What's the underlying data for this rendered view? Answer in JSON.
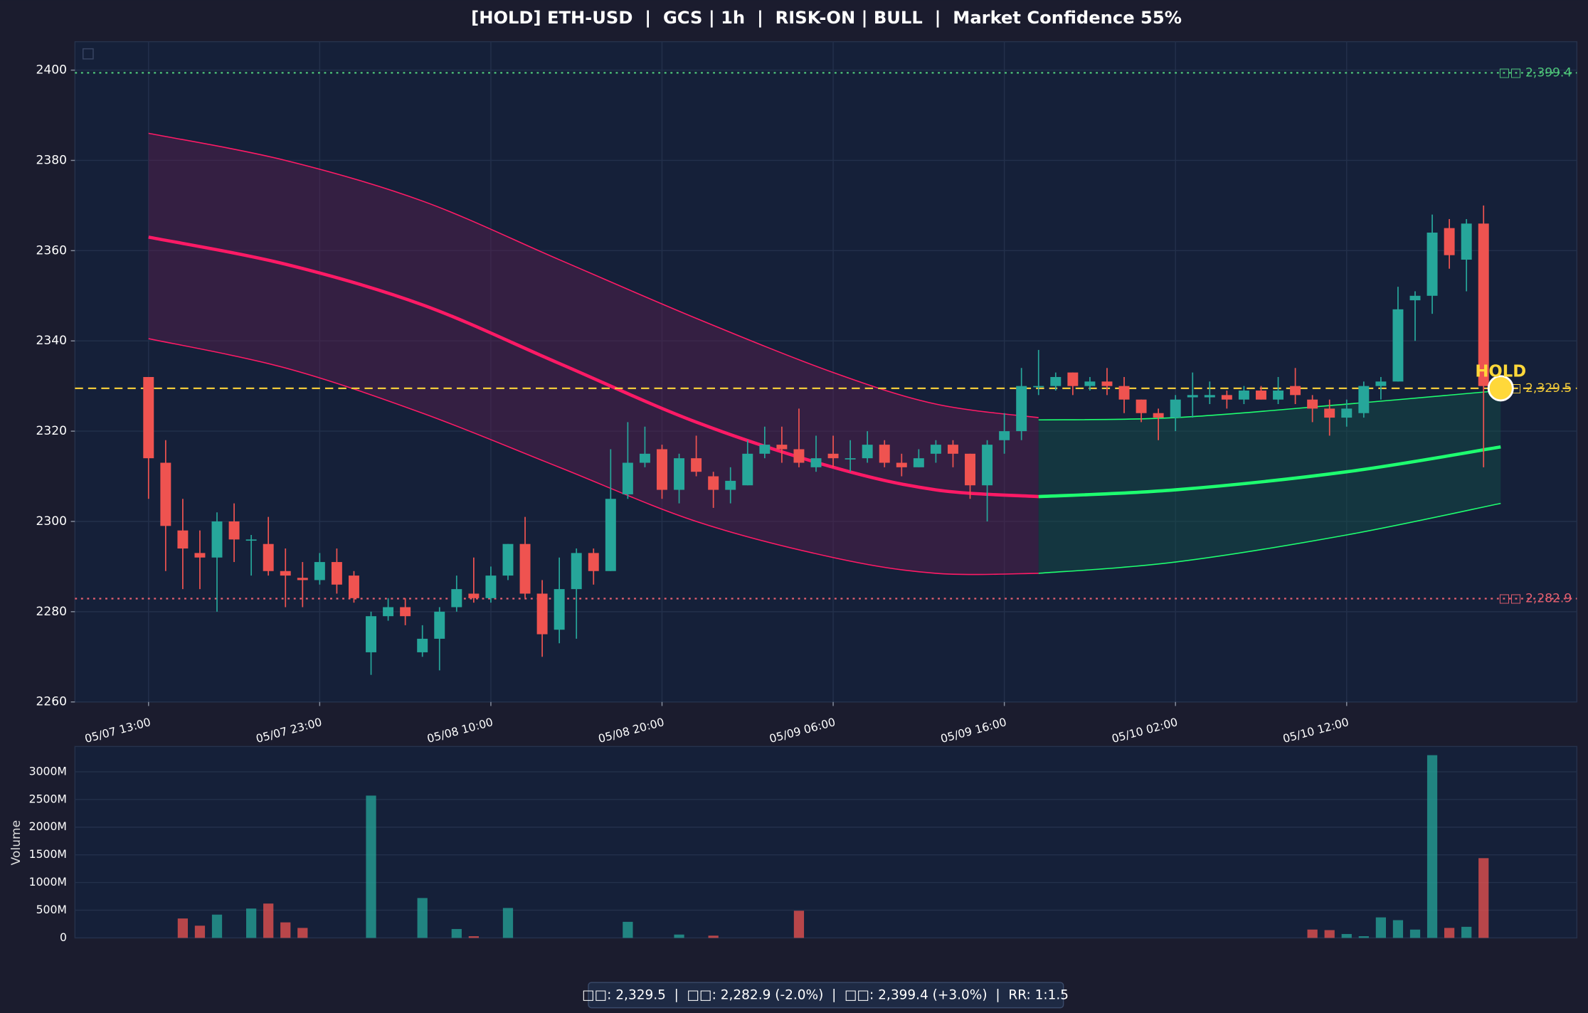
{
  "chart_data": [
    {
      "type": "candlestick",
      "title": "[HOLD] ETH-USD  |  GCS | 1h  |  RISK-ON | BULL  |  Market Confidence 55%",
      "categories": [
        "05/07 13:00",
        null,
        null,
        null,
        null,
        null,
        null,
        null,
        null,
        null,
        "05/07 23:00",
        null,
        null,
        null,
        null,
        null,
        null,
        null,
        null,
        null,
        "05/08 10:00",
        null,
        null,
        null,
        null,
        null,
        null,
        null,
        null,
        null,
        "05/08 20:00",
        null,
        null,
        null,
        null,
        null,
        null,
        null,
        null,
        null,
        "05/09 06:00",
        null,
        null,
        null,
        null,
        null,
        null,
        null,
        null,
        null,
        "05/09 16:00",
        null,
        null,
        null,
        null,
        null,
        null,
        null,
        null,
        null,
        "05/10 02:00",
        null,
        null,
        null,
        null,
        null,
        null,
        null,
        null,
        null,
        "05/10 12:00",
        null,
        null,
        null,
        null,
        null,
        null,
        null,
        null
      ],
      "open": [
        2332,
        2313,
        2298,
        2293,
        2292,
        2300,
        2296,
        2295,
        2289,
        2287.5,
        2287,
        2291,
        2288,
        2271,
        2279,
        2281,
        2271,
        2274,
        2281,
        2284,
        2283,
        2288,
        2295,
        2284,
        2276,
        2285,
        2293,
        2289,
        2306,
        2313,
        2316,
        2307,
        2314,
        2310,
        2307,
        2308,
        2315,
        2317,
        2316,
        2312,
        2315,
        2314,
        2314,
        2317,
        2313,
        2312,
        2315,
        2317,
        2315,
        2308,
        2318,
        2320,
        2330,
        2330,
        2333,
        2330,
        2331,
        2330,
        2327,
        2324,
        2323,
        2327.5,
        2327.5,
        2328,
        2327,
        2329,
        2327,
        2330,
        2327,
        2325,
        2323,
        2324,
        2330,
        2331,
        2349,
        2350,
        2365,
        2358,
        2366
      ],
      "high": [
        2332,
        2318,
        2305,
        2298,
        2302,
        2304,
        2297,
        2301,
        2294,
        2291,
        2293,
        2294,
        2289,
        2280,
        2283,
        2283,
        2277,
        2281,
        2288,
        2292,
        2290,
        2295,
        2301,
        2287,
        2292,
        2294,
        2294,
        2316,
        2322,
        2321,
        2317,
        2315,
        2319,
        2311,
        2312,
        2318,
        2321,
        2321,
        2325,
        2319,
        2319,
        2318,
        2320,
        2318,
        2315,
        2316,
        2318,
        2318,
        2315,
        2318,
        2324,
        2334,
        2338,
        2333,
        2333,
        2332,
        2334,
        2332,
        2327,
        2325,
        2328,
        2333,
        2331,
        2329,
        2330,
        2330,
        2332,
        2334,
        2328,
        2327,
        2327,
        2331,
        2332,
        2352,
        2351,
        2368,
        2367,
        2367,
        2370
      ],
      "low": [
        2305,
        2289,
        2285,
        2285,
        2280,
        2291,
        2288,
        2288,
        2281,
        2281,
        2286,
        2284,
        2282,
        2266,
        2278,
        2277,
        2270,
        2267,
        2280,
        2282,
        2282,
        2287,
        2283,
        2270,
        2273,
        2274,
        2286,
        2289,
        2305,
        2312,
        2305,
        2304,
        2310,
        2303,
        2304,
        2308,
        2314,
        2313,
        2312,
        2311,
        2312,
        2311,
        2313,
        2312,
        2310,
        2312,
        2313,
        2312,
        2305,
        2300,
        2315,
        2318,
        2328,
        2329,
        2328,
        2329,
        2328,
        2324,
        2322,
        2318,
        2320,
        2323,
        2326,
        2325,
        2326,
        2327,
        2326,
        2326,
        2322,
        2319,
        2321,
        2323,
        2327,
        2331,
        2340,
        2346,
        2356,
        2351,
        2312
      ],
      "close": [
        2314,
        2299,
        2294,
        2292,
        2300,
        2296,
        2296,
        2289,
        2288,
        2287,
        2291,
        2286,
        2283,
        2279,
        2281,
        2279,
        2274,
        2280,
        2285,
        2283,
        2288,
        2295,
        2284,
        2275,
        2285,
        2293,
        2289,
        2305,
        2313,
        2315,
        2307,
        2314,
        2311,
        2307,
        2309,
        2315,
        2317,
        2316,
        2313,
        2314,
        2314,
        2314,
        2317,
        2313,
        2312,
        2314,
        2317,
        2315,
        2308,
        2317,
        2320,
        2330,
        2330,
        2332,
        2330,
        2331,
        2330,
        2327,
        2324,
        2323,
        2327,
        2328,
        2328,
        2327,
        2329,
        2327,
        2329,
        2328,
        2325,
        2323,
        2325,
        2330,
        2331,
        2347,
        2350,
        2364,
        2359,
        2366,
        2330
      ],
      "up_color": "#26a69a",
      "down_color": "#ef5350",
      "xlim": [
        -4.3,
        83.45
      ],
      "ylim": [
        2260,
        2406.3
      ],
      "yticks": [
        2260,
        2280,
        2300,
        2320,
        2340,
        2360,
        2380,
        2400
      ],
      "grid": true,
      "channels": [
        {
          "color": "#ff1a66",
          "fill": "#5a1e4e",
          "x": [
            0,
            8,
            16,
            24,
            32,
            40,
            46,
            52
          ],
          "center": [
            2363,
            2357,
            2348,
            2335,
            2322,
            2312,
            2307,
            2305.5
          ],
          "upper": [
            2386,
            2380,
            2371,
            2358,
            2345,
            2333,
            2326,
            2323
          ],
          "lower": [
            2340.5,
            2334,
            2324,
            2312,
            2300,
            2292,
            2288.5,
            2288.5
          ]
        },
        {
          "color": "#1eff70",
          "fill": "#15524a",
          "x": [
            52,
            60,
            70,
            79
          ],
          "center": [
            2305.5,
            2307,
            2311,
            2316.5
          ],
          "upper": [
            2322.5,
            2323,
            2326,
            2329
          ],
          "lower": [
            2288.5,
            2291,
            2297,
            2304
          ]
        }
      ],
      "levels": [
        {
          "value": 2399.4,
          "label": "□□ 2,399.4",
          "color": "#4fc77a",
          "dash": "2 4"
        },
        {
          "value": 2329.5,
          "label": "□□ 2,329.5",
          "color": "#f0c93a",
          "dash": "8 5"
        },
        {
          "value": 2282.9,
          "label": "□□ 2,282.9",
          "color": "#e86070",
          "dash": "2 4"
        }
      ],
      "signal": {
        "label": "HOLD",
        "x": 79,
        "value": 2329.5,
        "color": "#ffd83a"
      },
      "footer": "□□: 2,329.5  |  □□: 2,282.9 (-2.0%)  |  □□: 2,399.4 (+3.0%)  |  RR: 1:1.5"
    },
    {
      "type": "bar",
      "ylabel": "Volume",
      "values": [
        0,
        0,
        350,
        220,
        420,
        0,
        530,
        620,
        280,
        180,
        0,
        0,
        0,
        2570,
        0,
        0,
        720,
        0,
        160,
        30,
        0,
        540,
        0,
        0,
        0,
        0,
        0,
        0,
        290,
        0,
        0,
        60,
        0,
        40,
        0,
        0,
        0,
        0,
        490,
        0,
        0,
        0,
        0,
        0,
        0,
        0,
        0,
        0,
        0,
        0,
        0,
        0,
        0,
        0,
        0,
        0,
        0,
        0,
        0,
        0,
        0,
        0,
        0,
        0,
        0,
        0,
        0,
        0,
        150,
        140,
        70,
        30,
        370,
        320,
        150,
        3300,
        180,
        200,
        1440
      ],
      "up_color": "#26a69a",
      "down_color": "#ef5350",
      "xlim": [
        -4.3,
        83.45
      ],
      "ylim": [
        0,
        3457
      ],
      "yticks": [
        0,
        {
          "value": 500,
          "label": "500M"
        },
        {
          "value": 1000,
          "label": "1000M"
        },
        {
          "value": 1500,
          "label": "1500M"
        },
        {
          "value": 2000,
          "label": "2000M"
        },
        {
          "value": 2500,
          "label": "2500M"
        },
        {
          "value": 3000,
          "label": "3000M"
        }
      ],
      "grid": true
    }
  ]
}
